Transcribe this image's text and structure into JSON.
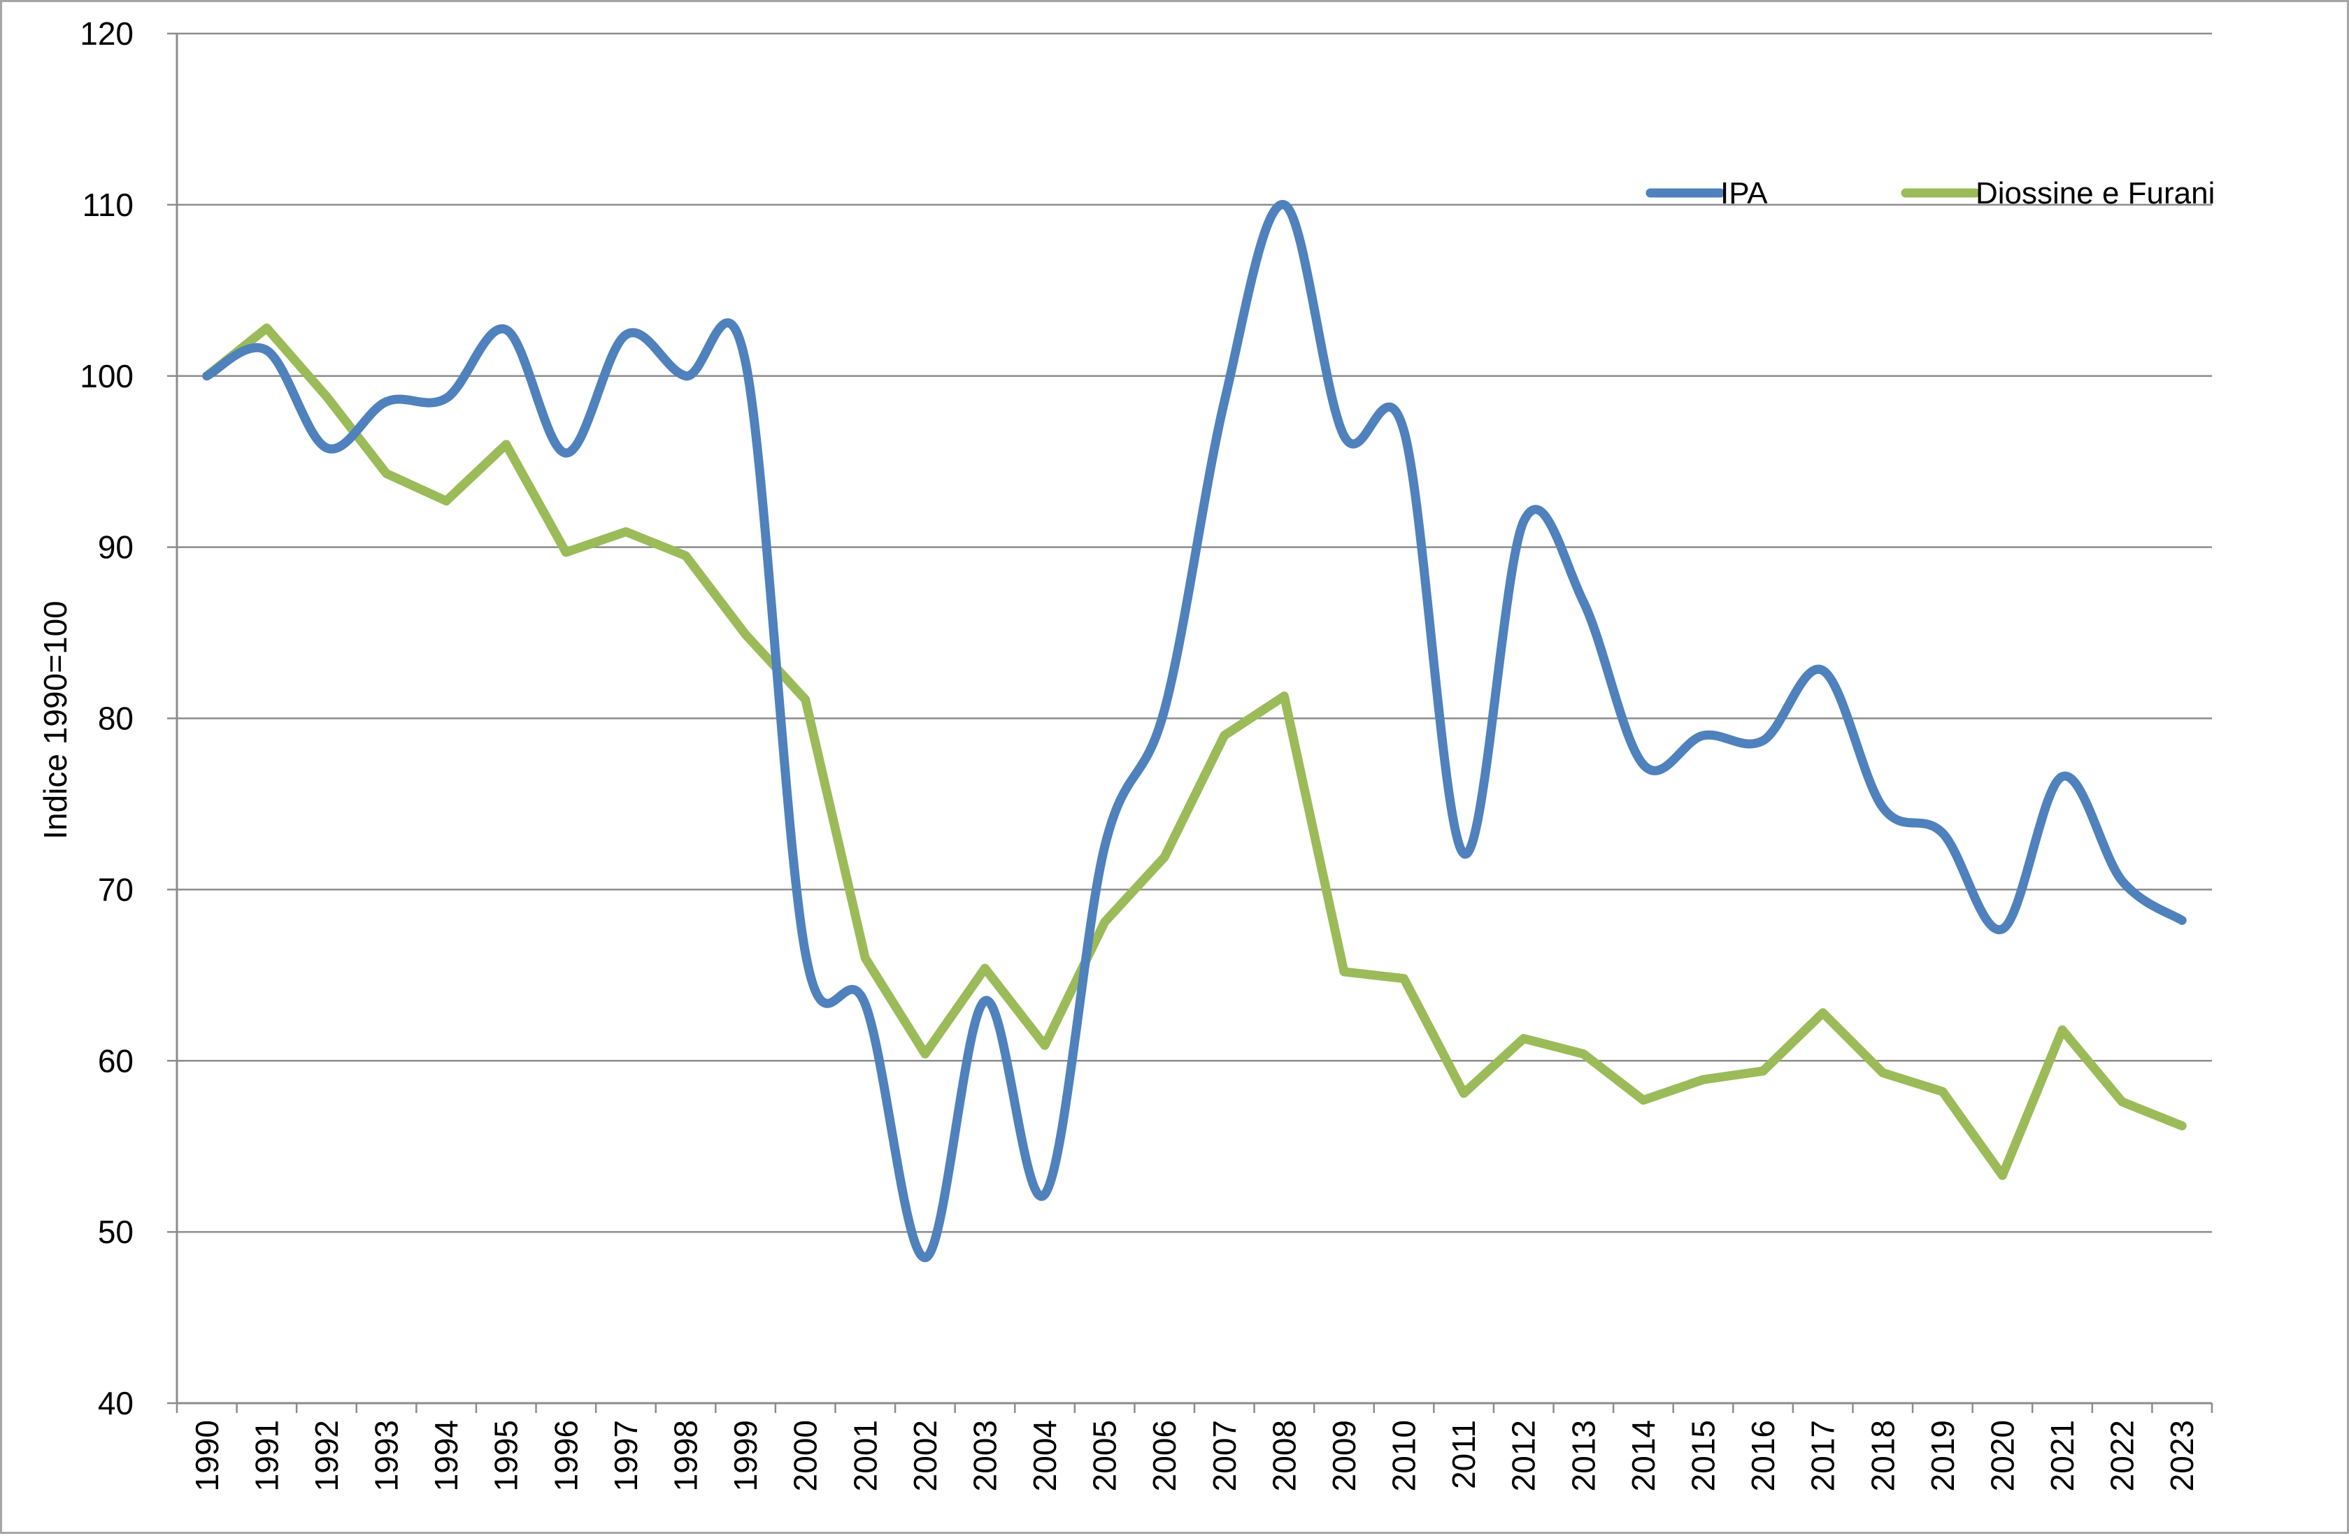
{
  "chart_data": {
    "type": "line",
    "title": "",
    "xlabel": "",
    "ylabel": "Indice 1990=100",
    "ylim": [
      40,
      120
    ],
    "yticks": [
      40,
      50,
      60,
      70,
      80,
      90,
      100,
      110,
      120
    ],
    "grid": "horizontal",
    "legend_position": "top-right",
    "categories": [
      "1990",
      "1991",
      "1992",
      "1993",
      "1994",
      "1995",
      "1996",
      "1997",
      "1998",
      "1999",
      "2000",
      "2001",
      "2002",
      "2003",
      "2004",
      "2005",
      "2006",
      "2007",
      "2008",
      "2009",
      "2010",
      "2011",
      "2012",
      "2013",
      "2014",
      "2015",
      "2016",
      "2017",
      "2018",
      "2019",
      "2020",
      "2021",
      "2022",
      "2023"
    ],
    "series": [
      {
        "name": "IPA",
        "color": "#4f81bd",
        "smooth": true,
        "values": [
          100,
          101.5,
          95.8,
          98.5,
          98.7,
          102.7,
          95.5,
          102.4,
          100,
          100.8,
          66.3,
          63.3,
          48.5,
          63.5,
          52.2,
          72.5,
          80.5,
          98.5,
          110,
          96.5,
          96.8,
          72.1,
          91.5,
          86.8,
          77.3,
          79,
          78.7,
          82.8,
          74.8,
          73.3,
          67.7,
          76.6,
          70.5,
          68.2
        ]
      },
      {
        "name": "Diossine e Furani",
        "color": "#9bbb59",
        "smooth": false,
        "values": [
          100,
          102.8,
          98.8,
          94.3,
          92.7,
          96,
          89.7,
          90.9,
          89.5,
          84.9,
          81.1,
          66,
          60.4,
          65.4,
          60.9,
          68.1,
          71.9,
          79,
          81.3,
          65.2,
          64.8,
          58.1,
          61.3,
          60.4,
          57.7,
          58.9,
          59.4,
          62.8,
          59.3,
          58.2,
          53.3,
          61.8,
          57.6,
          56.2
        ]
      }
    ]
  }
}
